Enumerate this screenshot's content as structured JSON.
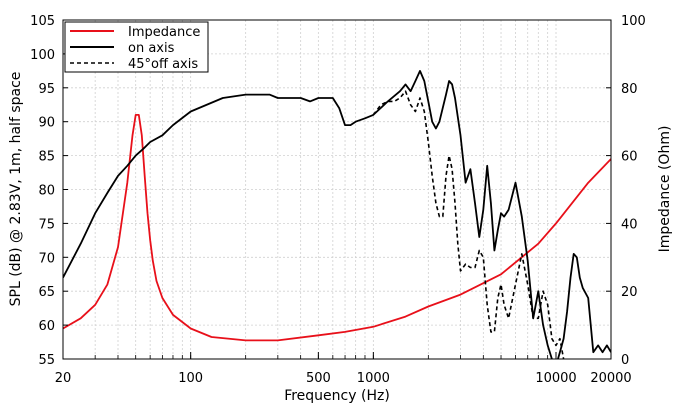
{
  "chart_data": {
    "type": "line",
    "xlabel": "Frequency (Hz)",
    "ylabel_left": "SPL (dB) @ 2.83V, 1m, half space",
    "ylabel_right": "Impedance (Ohm)",
    "x_scale": "log",
    "xlim": [
      20,
      20000
    ],
    "ylim_left": [
      55,
      105
    ],
    "ylim_right": [
      0,
      100
    ],
    "x_ticks": [
      20,
      100,
      500,
      1000,
      10000,
      20000
    ],
    "x_tick_labels": [
      "20",
      "100",
      "500",
      "1000",
      "10000",
      "20000"
    ],
    "y_left_ticks": [
      55,
      60,
      65,
      70,
      75,
      80,
      85,
      90,
      95,
      100,
      105
    ],
    "y_left_tick_labels": [
      "55",
      "60",
      "65",
      "70",
      "75",
      "80",
      "85",
      "90",
      "95",
      "100",
      "105"
    ],
    "y_right_ticks": [
      0,
      20,
      40,
      60,
      80,
      100
    ],
    "y_right_tick_labels": [
      "0",
      "20",
      "40",
      "60",
      "80",
      "100"
    ],
    "grid": true,
    "legend_position": "top-left",
    "series": [
      {
        "name": "Impedance",
        "axis": "right",
        "color": "#e8101a",
        "style": "solid",
        "x": [
          20,
          25,
          30,
          35,
          40,
          45,
          48,
          50,
          52,
          54,
          56,
          58,
          60,
          62,
          65,
          70,
          80,
          100,
          130,
          200,
          300,
          500,
          700,
          1000,
          1500,
          2000,
          3000,
          5000,
          8000,
          10000,
          15000,
          20000
        ],
        "y": [
          9,
          12,
          16,
          22,
          33,
          52,
          66,
          72,
          72,
          66,
          54,
          43,
          35,
          29,
          23,
          18,
          13,
          9,
          6.5,
          5.5,
          5.5,
          7,
          8,
          9.5,
          12.5,
          15.5,
          19,
          25,
          34,
          40,
          52,
          59
        ]
      },
      {
        "name": "on axis",
        "axis": "left",
        "color": "#000000",
        "style": "solid",
        "x": [
          20,
          25,
          30,
          35,
          40,
          45,
          50,
          55,
          60,
          70,
          80,
          100,
          150,
          200,
          270,
          300,
          400,
          450,
          500,
          550,
          600,
          650,
          700,
          750,
          800,
          900,
          1000,
          1200,
          1400,
          1500,
          1600,
          1700,
          1800,
          1900,
          2000,
          2100,
          2200,
          2300,
          2500,
          2600,
          2700,
          2800,
          3000,
          3200,
          3400,
          3600,
          3800,
          4000,
          4200,
          4400,
          4600,
          4800,
          5000,
          5200,
          5500,
          6000,
          6500,
          7000,
          7500,
          8000,
          8500,
          9000,
          9500,
          10000,
          10500,
          11000,
          11500,
          12000,
          12500,
          13000,
          13500,
          14000,
          15000,
          16000,
          17000,
          18000,
          19000,
          20000
        ],
        "y": [
          67,
          72,
          76.5,
          79.5,
          82,
          83.5,
          85,
          86,
          87,
          88,
          89.5,
          91.5,
          93.5,
          94,
          94,
          93.5,
          93.5,
          93,
          93.5,
          93.5,
          93.5,
          92,
          89.5,
          89.5,
          90,
          90.5,
          91,
          93,
          94.5,
          95.5,
          94.5,
          96,
          97.5,
          96,
          93,
          90,
          89,
          90,
          94,
          96,
          95.5,
          93.5,
          88,
          81,
          83,
          78,
          73,
          77,
          83.5,
          78,
          71,
          74,
          76.5,
          76,
          77,
          81,
          76,
          69.5,
          61,
          65,
          60,
          57,
          55,
          54,
          56,
          58,
          62,
          67,
          70.5,
          70,
          67,
          65.5,
          64,
          56,
          57,
          56,
          57,
          56
        ]
      },
      {
        "name": "45°off axis",
        "axis": "left",
        "color": "#000000",
        "style": "dashed",
        "x": [
          1000,
          1100,
          1200,
          1300,
          1400,
          1500,
          1600,
          1700,
          1800,
          1900,
          2000,
          2100,
          2200,
          2300,
          2400,
          2500,
          2600,
          2700,
          2800,
          2900,
          3000,
          3200,
          3400,
          3600,
          3800,
          4000,
          4200,
          4400,
          4600,
          4800,
          5000,
          5200,
          5500,
          6000,
          6500,
          7000,
          7500,
          8000,
          8500,
          9000,
          9500,
          10000,
          10500,
          11000
        ],
        "y": [
          91,
          92.5,
          93,
          93,
          93.5,
          94.5,
          92.5,
          91.5,
          93.5,
          91.5,
          87,
          82,
          78,
          76,
          76,
          82,
          85,
          83,
          78,
          72,
          68,
          69,
          68.5,
          68.5,
          71,
          70,
          63,
          59,
          59,
          64,
          66,
          63,
          61,
          66,
          70.5,
          66,
          61,
          61,
          65,
          63,
          58,
          57,
          58,
          55
        ]
      }
    ]
  }
}
